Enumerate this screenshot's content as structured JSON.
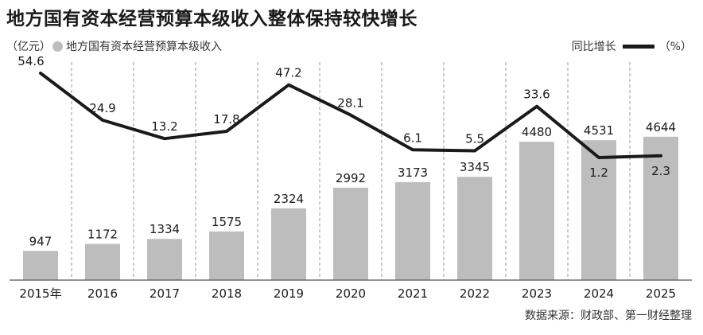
{
  "title": "地方国有资本经营预算本级收入整体保持较快增长",
  "legend": {
    "unit_left": "（亿元）",
    "bar_series_label": "地方国有资本经营预算本级收入",
    "line_series_label": "同比增长",
    "unit_right": "（%）"
  },
  "source": "数据来源：财政部、第一财经整理",
  "colors": {
    "bar": "#bdbdbd",
    "line": "#1a1a1a",
    "divider": "#9a9a9a"
  },
  "chart_data": {
    "type": "bar",
    "categories": [
      "2015年",
      "2016",
      "2017",
      "2018",
      "2019",
      "2020",
      "2021",
      "2022",
      "2023",
      "2024",
      "2025"
    ],
    "series": [
      {
        "name": "地方国有资本经营预算本级收入",
        "type": "bar",
        "unit": "亿元",
        "values": [
          947,
          1172,
          1334,
          1575,
          2324,
          2992,
          3173,
          3345,
          4480,
          4531,
          4644
        ]
      },
      {
        "name": "同比增长",
        "type": "line",
        "unit": "%",
        "values": [
          54.6,
          24.9,
          13.2,
          17.8,
          47.2,
          28.1,
          6.1,
          5.5,
          33.6,
          1.2,
          2.3
        ]
      }
    ],
    "xlabel": "",
    "ylabel": ""
  }
}
